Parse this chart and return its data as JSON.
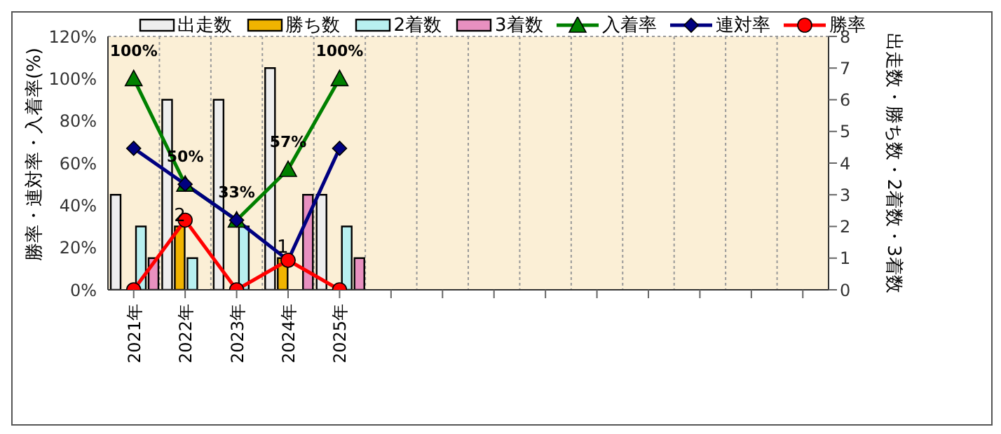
{
  "chart_data": {
    "type": "bar",
    "ylabel": "勝率・連対率・入着率(%)",
    "y2label": "出走数・勝ち数・2着数・3着数",
    "categories": [
      "2021年",
      "2022年",
      "2023年",
      "2024年",
      "2025年",
      null,
      null,
      null,
      null,
      null,
      null,
      null,
      null,
      null
    ],
    "series": [
      {
        "name": "出走数",
        "axis": "y2",
        "color": "#eeeeee",
        "values": [
          3,
          6,
          6,
          7,
          3,
          null,
          null,
          null,
          null,
          null,
          null,
          null,
          null,
          null
        ]
      },
      {
        "name": "勝ち数",
        "axis": "y2",
        "color": "#f0b400",
        "values": [
          0,
          2,
          0,
          1,
          0,
          null,
          null,
          null,
          null,
          null,
          null,
          null,
          null,
          null
        ],
        "value_labels": [
          null,
          "2",
          null,
          "1",
          null,
          null,
          null,
          null,
          null,
          null,
          null,
          null,
          null,
          null
        ]
      },
      {
        "name": "2着数",
        "axis": "y2",
        "color": "#b8f0f0",
        "values": [
          2,
          1,
          2,
          0,
          2,
          null,
          null,
          null,
          null,
          null,
          null,
          null,
          null,
          null
        ]
      },
      {
        "name": "3着数",
        "axis": "y2",
        "color": "#e890c0",
        "values": [
          1,
          0,
          0,
          3,
          1,
          null,
          null,
          null,
          null,
          null,
          null,
          null,
          null,
          null
        ]
      },
      {
        "name": "入着率",
        "type": "line",
        "marker": "triangle",
        "color": "#008000",
        "values": [
          100,
          50,
          33,
          57,
          100,
          null,
          null,
          null,
          null,
          null,
          null,
          null,
          null,
          null
        ],
        "value_labels": [
          "100%",
          "50%",
          "33%",
          "57%",
          "100%",
          null,
          null,
          null,
          null,
          null,
          null,
          null,
          null,
          null
        ]
      },
      {
        "name": "連対率",
        "type": "line",
        "marker": "diamond",
        "color": "#000080",
        "values": [
          67,
          50,
          33,
          14,
          67,
          null,
          null,
          null,
          null,
          null,
          null,
          null,
          null,
          null
        ]
      },
      {
        "name": "勝率",
        "type": "line",
        "marker": "circle",
        "color": "#ff0000",
        "values": [
          0,
          33,
          0,
          14,
          0,
          null,
          null,
          null,
          null,
          null,
          null,
          null,
          null,
          null
        ]
      }
    ],
    "ylim": [
      0,
      120
    ],
    "yticks": [
      {
        "value": 0,
        "label": "0%"
      },
      {
        "value": 20,
        "label": "20%"
      },
      {
        "value": 40,
        "label": "40%"
      },
      {
        "value": 60,
        "label": "60%"
      },
      {
        "value": 80,
        "label": "80%"
      },
      {
        "value": 100,
        "label": "100%"
      },
      {
        "value": 120,
        "label": "120%"
      }
    ],
    "y2lim": [
      0,
      8
    ],
    "y2ticks": [
      0,
      1,
      2,
      3,
      4,
      5,
      6,
      7,
      8
    ],
    "grid": true,
    "legend": "top",
    "line_style": "solid"
  }
}
